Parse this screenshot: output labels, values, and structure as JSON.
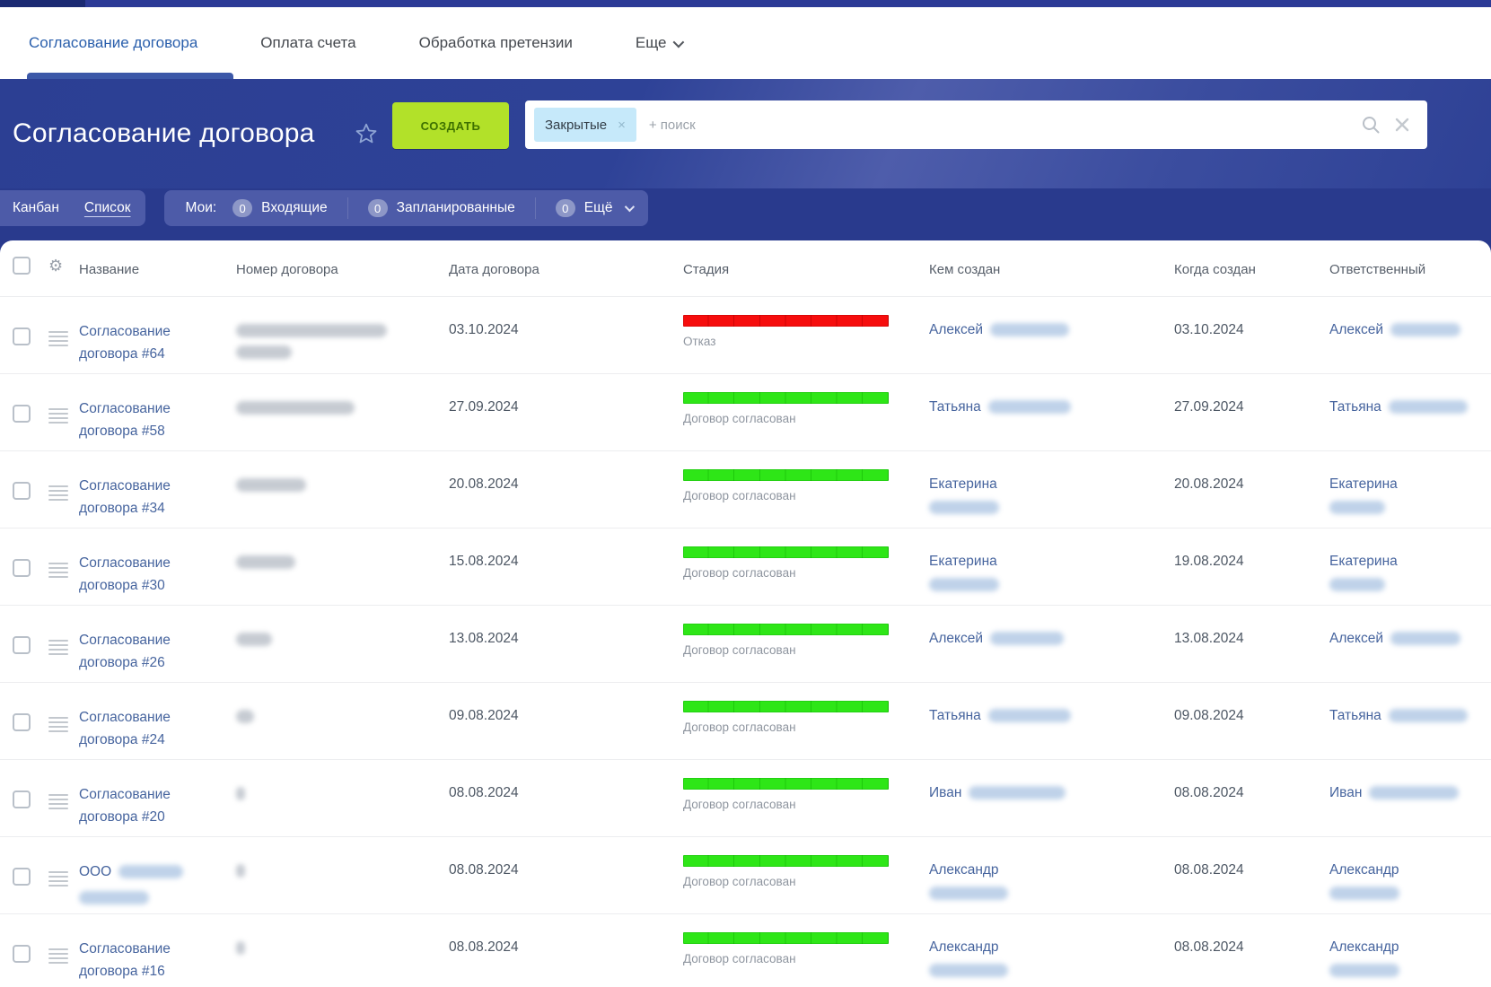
{
  "tabs": {
    "items": [
      {
        "label": "Согласование договора",
        "active": true
      },
      {
        "label": "Оплата счета",
        "active": false
      },
      {
        "label": "Обработка претензии",
        "active": false
      },
      {
        "label": "Еще",
        "active": false,
        "has_chevron": true
      }
    ]
  },
  "header": {
    "title": "Согласование договора",
    "create_label": "СОЗДАТЬ",
    "filter_chip": "Закрытые",
    "filter_chip_close": "×",
    "search_placeholder": "+ поиск"
  },
  "toolbar": {
    "views": [
      {
        "label": "Канбан",
        "active": false
      },
      {
        "label": "Список",
        "active": true
      }
    ],
    "my_label": "Мои:",
    "counters": [
      {
        "count": "0",
        "label": "Входящие"
      },
      {
        "count": "0",
        "label": "Запланированные"
      },
      {
        "count": "0",
        "label": "Ещё",
        "has_chevron": true
      }
    ]
  },
  "table": {
    "columns": [
      "Название",
      "Номер договора",
      "Дата договора",
      "Стадия",
      "Кем создан",
      "Когда создан",
      "Ответственный"
    ]
  },
  "stage_colors": {
    "red": "#f60d0d",
    "green": "#2ee617"
  },
  "accent_colors": {
    "create_button": "#b2e129",
    "header_blue": "#2e4297",
    "toolbar_blue": "#293a8d",
    "link_blue": "#46649e",
    "chip_blue": "#c6e9fa"
  },
  "rows": [
    {
      "title_lines": [
        "Согласование",
        "договора #64"
      ],
      "number_redacted": [
        168,
        62
      ],
      "contract_date": "03.10.2024",
      "stage": {
        "label": "Отказ",
        "status": "red"
      },
      "created_by": {
        "name": "Алексей",
        "redacted_inline": 88
      },
      "created_on": "03.10.2024",
      "responsible": {
        "name": "Алексей",
        "redacted_inline": 78
      }
    },
    {
      "title_lines": [
        "Согласование",
        "договора #58"
      ],
      "number_redacted": [
        132
      ],
      "contract_date": "27.09.2024",
      "stage": {
        "label": "Договор согласован",
        "status": "green"
      },
      "created_by": {
        "name": "Татьяна",
        "redacted_inline": 92
      },
      "created_on": "27.09.2024",
      "responsible": {
        "name": "Татьяна",
        "redacted_inline": 88
      }
    },
    {
      "title_lines": [
        "Согласование",
        "договора #34"
      ],
      "number_redacted": [
        78
      ],
      "contract_date": "20.08.2024",
      "stage": {
        "label": "Договор согласован",
        "status": "green"
      },
      "created_by": {
        "name": "Екатерина",
        "redacted_below": 78
      },
      "created_on": "20.08.2024",
      "responsible": {
        "name": "Екатерина",
        "redacted_below": 62
      }
    },
    {
      "title_lines": [
        "Согласование",
        "договора #30"
      ],
      "number_redacted": [
        66
      ],
      "contract_date": "15.08.2024",
      "stage": {
        "label": "Договор согласован",
        "status": "green"
      },
      "created_by": {
        "name": "Екатерина",
        "redacted_below": 78
      },
      "created_on": "19.08.2024",
      "responsible": {
        "name": "Екатерина",
        "redacted_below": 62
      }
    },
    {
      "title_lines": [
        "Согласование",
        "договора #26"
      ],
      "number_redacted": [
        40
      ],
      "contract_date": "13.08.2024",
      "stage": {
        "label": "Договор согласован",
        "status": "green"
      },
      "created_by": {
        "name": "Алексей",
        "redacted_inline": 82
      },
      "created_on": "13.08.2024",
      "responsible": {
        "name": "Алексей",
        "redacted_inline": 78
      }
    },
    {
      "title_lines": [
        "Согласование",
        "договора #24"
      ],
      "number_redacted": [
        20
      ],
      "contract_date": "09.08.2024",
      "stage": {
        "label": "Договор согласован",
        "status": "green"
      },
      "created_by": {
        "name": "Татьяна",
        "redacted_inline": 92
      },
      "created_on": "09.08.2024",
      "responsible": {
        "name": "Татьяна",
        "redacted_inline": 88
      }
    },
    {
      "title_lines": [
        "Согласование",
        "договора #20"
      ],
      "number_redacted": [
        10
      ],
      "contract_date": "08.08.2024",
      "stage": {
        "label": "Договор согласован",
        "status": "green"
      },
      "created_by": {
        "name": "Иван",
        "redacted_inline": 108
      },
      "created_on": "08.08.2024",
      "responsible": {
        "name": "Иван",
        "redacted_inline": 100
      }
    },
    {
      "title_lines": [
        "ООО"
      ],
      "title_redacted_inline": 72,
      "title_redacted_below": 78,
      "number_redacted": [
        10
      ],
      "contract_date": "08.08.2024",
      "stage": {
        "label": "Договор согласован",
        "status": "green"
      },
      "created_by": {
        "name": "Александр",
        "redacted_below": 88
      },
      "created_on": "08.08.2024",
      "responsible": {
        "name": "Александр",
        "redacted_below": 78
      }
    },
    {
      "title_lines": [
        "Согласование",
        "договора #16"
      ],
      "number_redacted": [
        10
      ],
      "contract_date": "08.08.2024",
      "stage": {
        "label": "Договор согласован",
        "status": "green"
      },
      "created_by": {
        "name": "Александр",
        "redacted_below": 88
      },
      "created_on": "08.08.2024",
      "responsible": {
        "name": "Александр",
        "redacted_below": 78
      }
    }
  ]
}
